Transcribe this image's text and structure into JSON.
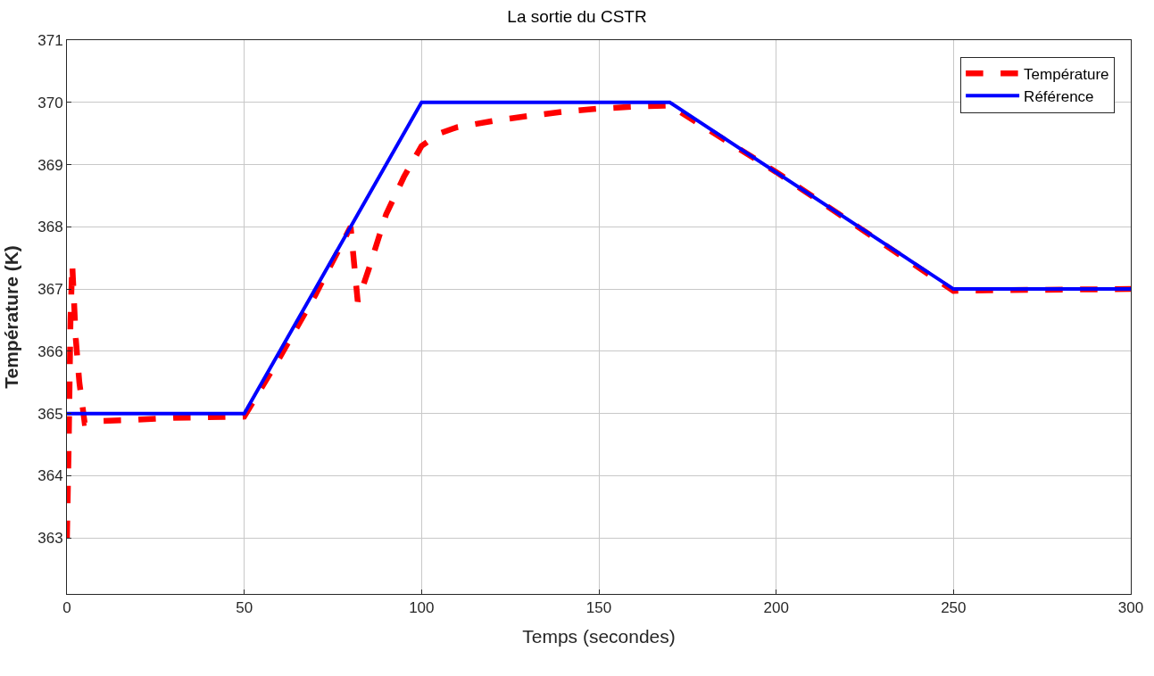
{
  "chart_data": {
    "type": "line",
    "title": "La sortie du CSTR",
    "xlabel": "Temps (secondes)",
    "ylabel": "Température (K)",
    "xlim": [
      0,
      300
    ],
    "xticks": [
      0,
      50,
      100,
      150,
      200,
      250,
      300
    ],
    "ylim": [
      362.1,
      371
    ],
    "yticks": [
      363,
      364,
      365,
      366,
      367,
      368,
      369,
      370,
      371
    ],
    "grid": true,
    "legend": "top right",
    "marker": "none",
    "series": [
      {
        "name": "Température",
        "color": "#ff0000",
        "line_style": "dashed",
        "x": [
          0,
          0.5,
          1,
          1.5,
          2.5,
          3.5,
          5,
          10,
          20,
          30,
          50,
          60,
          70,
          80,
          82,
          85,
          90,
          95,
          100,
          105,
          110,
          120,
          130,
          140,
          150,
          160,
          170,
          200,
          250,
          260,
          300
        ],
        "values": [
          363,
          364.5,
          366.5,
          367.4,
          366.2,
          365.5,
          364.85,
          364.88,
          364.9,
          364.93,
          364.95,
          365.9,
          366.9,
          368,
          366.8,
          367.3,
          368.2,
          368.8,
          369.3,
          369.5,
          369.6,
          369.7,
          369.78,
          369.85,
          369.9,
          369.93,
          369.95,
          368.88,
          366.97,
          366.98,
          367
        ]
      },
      {
        "name": "Référence",
        "color": "#0000ff",
        "line_style": "solid",
        "x": [
          0,
          50,
          100,
          170,
          250,
          300
        ],
        "values": [
          365,
          365,
          370,
          370,
          367,
          367
        ]
      }
    ]
  }
}
